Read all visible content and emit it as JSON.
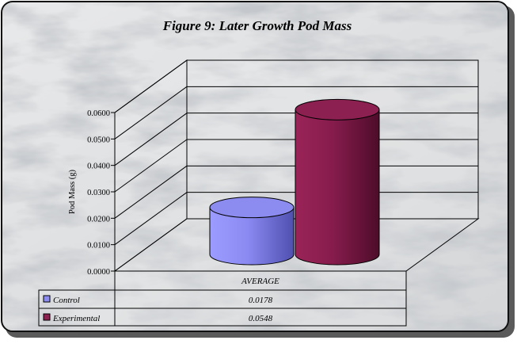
{
  "chart_data": {
    "type": "bar",
    "title": "Figure 9: Later Growth Pod Mass",
    "xlabel": "",
    "ylabel": "Pod Mass (g)",
    "categories": [
      "AVERAGE"
    ],
    "series": [
      {
        "name": "Control",
        "values": [
          0.0178
        ],
        "color": "#8c8cf0"
      },
      {
        "name": "Experimental",
        "values": [
          0.0548
        ],
        "color": "#8c2050"
      }
    ],
    "yticks": [
      "0.0000",
      "0.0100",
      "0.0200",
      "0.0300",
      "0.0400",
      "0.0500",
      "0.0600"
    ],
    "ylim": [
      0,
      0.06
    ],
    "grid": true,
    "legend": "data-table-left",
    "bar_shape": "cylinder-3d",
    "data_table": {
      "header": "AVERAGE",
      "rows": [
        {
          "label": "Control",
          "value": "0.0178"
        },
        {
          "label": "Experimental",
          "value": "0.0548"
        }
      ]
    }
  }
}
